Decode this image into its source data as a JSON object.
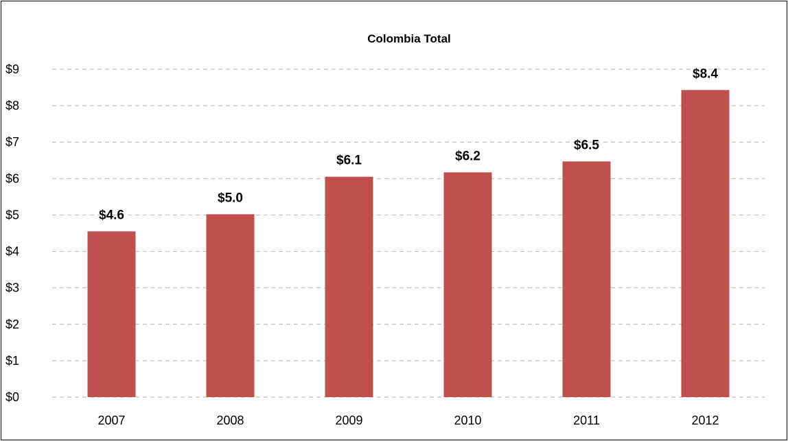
{
  "chart_data": {
    "type": "bar",
    "title": "Colombia Total",
    "xlabel": "",
    "ylabel": "",
    "categories": [
      "2007",
      "2008",
      "2009",
      "2010",
      "2011",
      "2012"
    ],
    "values": [
      4.55,
      5.02,
      6.05,
      6.17,
      6.47,
      8.43
    ],
    "data_labels": [
      "$4.6",
      "$5.0",
      "$6.1",
      "$6.2",
      "$6.5",
      "$8.4"
    ],
    "ylim": [
      0,
      9
    ],
    "yticks": [
      0,
      1,
      2,
      3,
      4,
      5,
      6,
      7,
      8,
      9
    ],
    "ytick_labels": [
      "$0",
      "$1",
      "$2",
      "$3",
      "$4",
      "$5",
      "$6",
      "$7",
      "$8",
      "$9"
    ],
    "grid": true,
    "legend": "none",
    "colors": {
      "bar": "#c0504d",
      "gridline": "#bfbfbf",
      "text": "#000000",
      "border": "#000000"
    }
  }
}
